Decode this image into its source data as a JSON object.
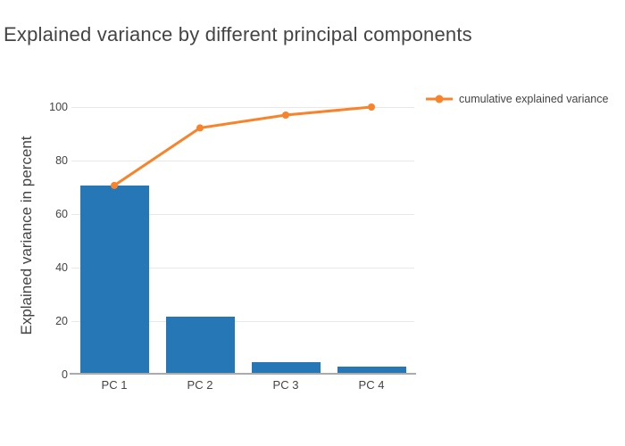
{
  "chart_data": {
    "type": "bar",
    "title": "Explained variance by different principal components",
    "xlabel": "",
    "ylabel": "Explained variance in percent",
    "categories": [
      "PC 1",
      "PC 2",
      "PC 3",
      "PC 4"
    ],
    "series": [
      {
        "name": "explained variance",
        "type": "bar",
        "color": "#2578b5",
        "values": [
          70.7,
          21.5,
          4.8,
          3.0
        ],
        "in_legend": false
      },
      {
        "name": "cumulative explained variance",
        "type": "line",
        "color": "#f8832b",
        "values": [
          70.7,
          92.2,
          97.0,
          100.0
        ],
        "in_legend": true
      }
    ],
    "yticks": [
      0,
      20,
      40,
      60,
      80,
      100
    ],
    "ylim": [
      0,
      105
    ],
    "grid": true,
    "legend_position": "top-right"
  },
  "colors": {
    "bar": "#2578b5",
    "line": "#f8832b",
    "grid": "#e8e8e8",
    "axis_line": "#ababab",
    "text": "#444444",
    "background": "#ffffff"
  }
}
